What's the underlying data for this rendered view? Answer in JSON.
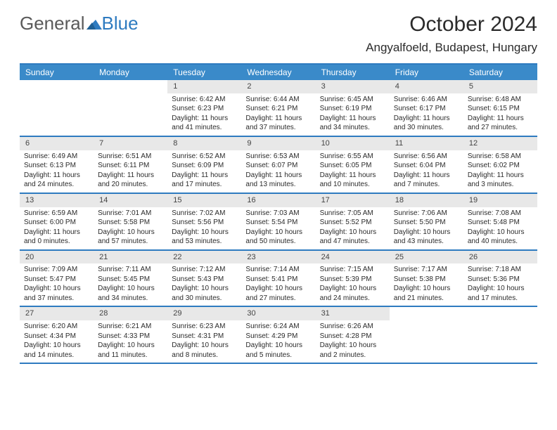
{
  "logo": {
    "part1": "General",
    "part2": "Blue"
  },
  "header": {
    "month_title": "October 2024",
    "location": "Angyalfoeld, Budapest, Hungary"
  },
  "colors": {
    "accent": "#2e7bc0",
    "header_bg": "#3a8ac9",
    "daynum_bg": "#e8e8e8",
    "text": "#2b2b2b"
  },
  "calendar": {
    "day_headers": [
      "Sunday",
      "Monday",
      "Tuesday",
      "Wednesday",
      "Thursday",
      "Friday",
      "Saturday"
    ],
    "weeks": [
      [
        {
          "num": "",
          "lines": []
        },
        {
          "num": "",
          "lines": []
        },
        {
          "num": "1",
          "lines": [
            "Sunrise: 6:42 AM",
            "Sunset: 6:23 PM",
            "Daylight: 11 hours",
            "and 41 minutes."
          ]
        },
        {
          "num": "2",
          "lines": [
            "Sunrise: 6:44 AM",
            "Sunset: 6:21 PM",
            "Daylight: 11 hours",
            "and 37 minutes."
          ]
        },
        {
          "num": "3",
          "lines": [
            "Sunrise: 6:45 AM",
            "Sunset: 6:19 PM",
            "Daylight: 11 hours",
            "and 34 minutes."
          ]
        },
        {
          "num": "4",
          "lines": [
            "Sunrise: 6:46 AM",
            "Sunset: 6:17 PM",
            "Daylight: 11 hours",
            "and 30 minutes."
          ]
        },
        {
          "num": "5",
          "lines": [
            "Sunrise: 6:48 AM",
            "Sunset: 6:15 PM",
            "Daylight: 11 hours",
            "and 27 minutes."
          ]
        }
      ],
      [
        {
          "num": "6",
          "lines": [
            "Sunrise: 6:49 AM",
            "Sunset: 6:13 PM",
            "Daylight: 11 hours",
            "and 24 minutes."
          ]
        },
        {
          "num": "7",
          "lines": [
            "Sunrise: 6:51 AM",
            "Sunset: 6:11 PM",
            "Daylight: 11 hours",
            "and 20 minutes."
          ]
        },
        {
          "num": "8",
          "lines": [
            "Sunrise: 6:52 AM",
            "Sunset: 6:09 PM",
            "Daylight: 11 hours",
            "and 17 minutes."
          ]
        },
        {
          "num": "9",
          "lines": [
            "Sunrise: 6:53 AM",
            "Sunset: 6:07 PM",
            "Daylight: 11 hours",
            "and 13 minutes."
          ]
        },
        {
          "num": "10",
          "lines": [
            "Sunrise: 6:55 AM",
            "Sunset: 6:05 PM",
            "Daylight: 11 hours",
            "and 10 minutes."
          ]
        },
        {
          "num": "11",
          "lines": [
            "Sunrise: 6:56 AM",
            "Sunset: 6:04 PM",
            "Daylight: 11 hours",
            "and 7 minutes."
          ]
        },
        {
          "num": "12",
          "lines": [
            "Sunrise: 6:58 AM",
            "Sunset: 6:02 PM",
            "Daylight: 11 hours",
            "and 3 minutes."
          ]
        }
      ],
      [
        {
          "num": "13",
          "lines": [
            "Sunrise: 6:59 AM",
            "Sunset: 6:00 PM",
            "Daylight: 11 hours",
            "and 0 minutes."
          ]
        },
        {
          "num": "14",
          "lines": [
            "Sunrise: 7:01 AM",
            "Sunset: 5:58 PM",
            "Daylight: 10 hours",
            "and 57 minutes."
          ]
        },
        {
          "num": "15",
          "lines": [
            "Sunrise: 7:02 AM",
            "Sunset: 5:56 PM",
            "Daylight: 10 hours",
            "and 53 minutes."
          ]
        },
        {
          "num": "16",
          "lines": [
            "Sunrise: 7:03 AM",
            "Sunset: 5:54 PM",
            "Daylight: 10 hours",
            "and 50 minutes."
          ]
        },
        {
          "num": "17",
          "lines": [
            "Sunrise: 7:05 AM",
            "Sunset: 5:52 PM",
            "Daylight: 10 hours",
            "and 47 minutes."
          ]
        },
        {
          "num": "18",
          "lines": [
            "Sunrise: 7:06 AM",
            "Sunset: 5:50 PM",
            "Daylight: 10 hours",
            "and 43 minutes."
          ]
        },
        {
          "num": "19",
          "lines": [
            "Sunrise: 7:08 AM",
            "Sunset: 5:48 PM",
            "Daylight: 10 hours",
            "and 40 minutes."
          ]
        }
      ],
      [
        {
          "num": "20",
          "lines": [
            "Sunrise: 7:09 AM",
            "Sunset: 5:47 PM",
            "Daylight: 10 hours",
            "and 37 minutes."
          ]
        },
        {
          "num": "21",
          "lines": [
            "Sunrise: 7:11 AM",
            "Sunset: 5:45 PM",
            "Daylight: 10 hours",
            "and 34 minutes."
          ]
        },
        {
          "num": "22",
          "lines": [
            "Sunrise: 7:12 AM",
            "Sunset: 5:43 PM",
            "Daylight: 10 hours",
            "and 30 minutes."
          ]
        },
        {
          "num": "23",
          "lines": [
            "Sunrise: 7:14 AM",
            "Sunset: 5:41 PM",
            "Daylight: 10 hours",
            "and 27 minutes."
          ]
        },
        {
          "num": "24",
          "lines": [
            "Sunrise: 7:15 AM",
            "Sunset: 5:39 PM",
            "Daylight: 10 hours",
            "and 24 minutes."
          ]
        },
        {
          "num": "25",
          "lines": [
            "Sunrise: 7:17 AM",
            "Sunset: 5:38 PM",
            "Daylight: 10 hours",
            "and 21 minutes."
          ]
        },
        {
          "num": "26",
          "lines": [
            "Sunrise: 7:18 AM",
            "Sunset: 5:36 PM",
            "Daylight: 10 hours",
            "and 17 minutes."
          ]
        }
      ],
      [
        {
          "num": "27",
          "lines": [
            "Sunrise: 6:20 AM",
            "Sunset: 4:34 PM",
            "Daylight: 10 hours",
            "and 14 minutes."
          ]
        },
        {
          "num": "28",
          "lines": [
            "Sunrise: 6:21 AM",
            "Sunset: 4:33 PM",
            "Daylight: 10 hours",
            "and 11 minutes."
          ]
        },
        {
          "num": "29",
          "lines": [
            "Sunrise: 6:23 AM",
            "Sunset: 4:31 PM",
            "Daylight: 10 hours",
            "and 8 minutes."
          ]
        },
        {
          "num": "30",
          "lines": [
            "Sunrise: 6:24 AM",
            "Sunset: 4:29 PM",
            "Daylight: 10 hours",
            "and 5 minutes."
          ]
        },
        {
          "num": "31",
          "lines": [
            "Sunrise: 6:26 AM",
            "Sunset: 4:28 PM",
            "Daylight: 10 hours",
            "and 2 minutes."
          ]
        },
        {
          "num": "",
          "lines": []
        },
        {
          "num": "",
          "lines": []
        }
      ]
    ]
  }
}
